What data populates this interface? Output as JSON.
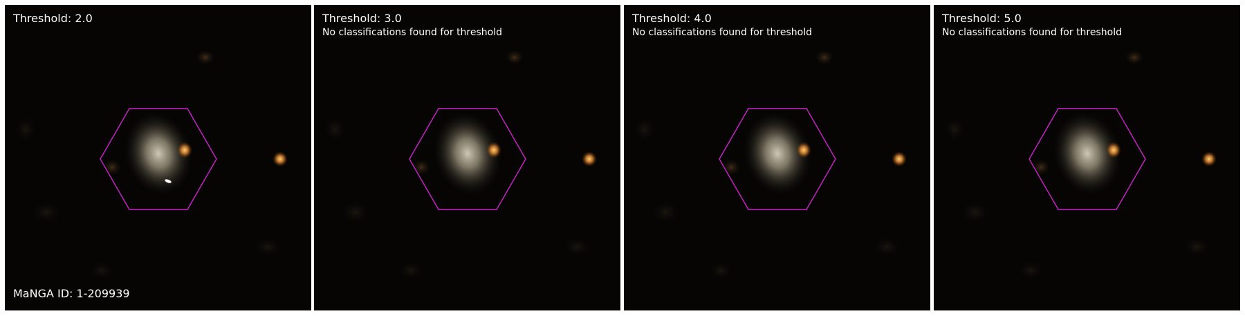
{
  "manga_id": "MaNGA ID: 1-209939",
  "hex_color": "#cc22cc",
  "panels": [
    {
      "title": "Threshold: 2.0",
      "note": "",
      "has_marker": true
    },
    {
      "title": "Threshold: 3.0",
      "note": "No classifications found for threshold",
      "has_marker": false
    },
    {
      "title": "Threshold: 4.0",
      "note": "No classifications found for threshold",
      "has_marker": false
    },
    {
      "title": "Threshold: 5.0",
      "note": "No classifications found for threshold",
      "has_marker": false
    }
  ]
}
